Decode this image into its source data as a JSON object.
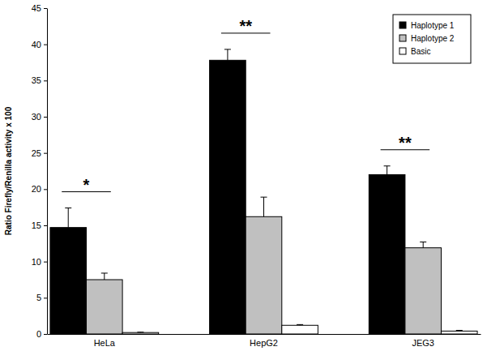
{
  "chart_data": {
    "type": "bar",
    "y_label": "Ratio Firefly/Renilla activity x 100",
    "categories": [
      "HeLa",
      "HepG2",
      "JEG3"
    ],
    "series": [
      {
        "name": "Haplotype 1",
        "color": "#000000",
        "values": [
          14.7,
          37.8,
          22.0
        ],
        "errors": [
          2.7,
          1.5,
          1.2
        ]
      },
      {
        "name": "Haplotype 2",
        "color": "#c0c0c0",
        "values": [
          7.5,
          16.2,
          11.9
        ],
        "errors": [
          0.9,
          2.7,
          0.8
        ]
      },
      {
        "name": "Basic",
        "color": "#ffffff",
        "values": [
          0.2,
          1.2,
          0.4
        ],
        "errors": [
          0.05,
          0.1,
          0.1
        ]
      }
    ],
    "annotations": [
      {
        "text": "*",
        "category": "HeLa"
      },
      {
        "text": "**",
        "category": "HepG2"
      },
      {
        "text": "**",
        "category": "JEG3"
      }
    ],
    "ylim": [
      0,
      45
    ],
    "yticks": [
      0,
      5,
      10,
      15,
      20,
      25,
      30,
      35,
      40,
      45
    ],
    "legend": "upper right",
    "grid": false
  }
}
